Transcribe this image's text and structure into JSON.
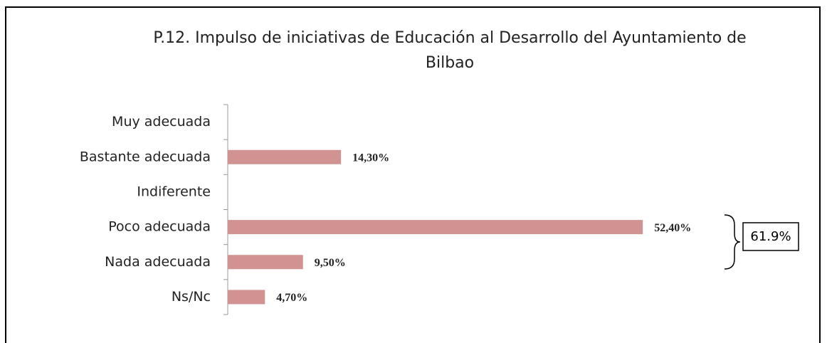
{
  "chart_data": {
    "type": "bar",
    "orientation": "horizontal",
    "title": [
      "P.12. Impulso de iniciativas de Educación al Desarrollo del Ayuntamiento de",
      "Bilbao"
    ],
    "categories": [
      "Muy  adecuada",
      "Bastante adecuada",
      "Indiferente",
      "Poco adecuada",
      "Nada adecuada",
      "Ns/Nc"
    ],
    "values": [
      null,
      14.3,
      null,
      52.4,
      9.5,
      4.7
    ],
    "value_labels": [
      null,
      "14,30%",
      null,
      "52,40%",
      "9,50%",
      "4,70%"
    ],
    "color": "#d09392",
    "annotation": "61.9%"
  }
}
